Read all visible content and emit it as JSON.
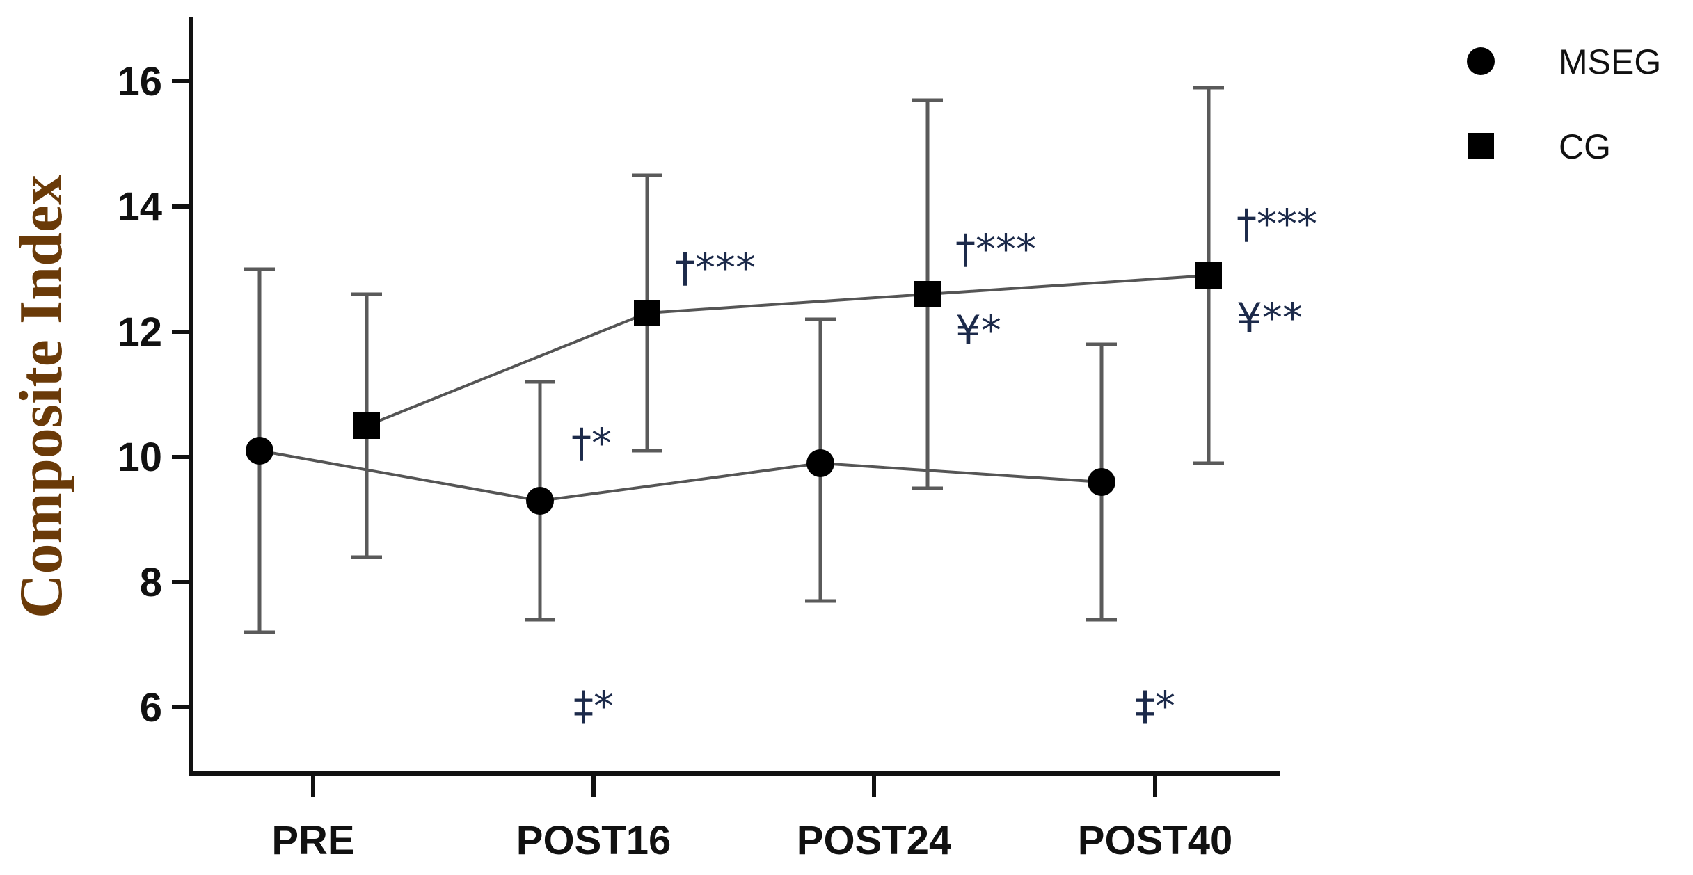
{
  "chart_data": {
    "type": "line",
    "title": "",
    "xlabel": "",
    "ylabel": "Composite Index",
    "categories": [
      "PRE",
      "POST16",
      "POST24",
      "POST40"
    ],
    "ylim": [
      5,
      17
    ],
    "yticks": [
      6,
      8,
      10,
      12,
      14,
      16
    ],
    "grid": false,
    "legend_position": "top-right",
    "series": [
      {
        "name": "MSEG",
        "marker": "circle",
        "values": [
          10.1,
          9.3,
          9.9,
          9.6
        ],
        "error_low": [
          7.2,
          7.4,
          7.7,
          7.4
        ],
        "error_high": [
          13.0,
          11.2,
          12.2,
          11.8
        ]
      },
      {
        "name": "CG",
        "marker": "square",
        "values": [
          10.5,
          12.3,
          12.6,
          12.9
        ],
        "error_low": [
          8.4,
          10.1,
          9.5,
          9.9
        ],
        "error_high": [
          12.6,
          14.5,
          15.7,
          15.9
        ]
      }
    ],
    "annotations": [
      {
        "text": "†*",
        "category": "POST16",
        "series": "MSEG",
        "y": 10.0
      },
      {
        "text": "†***",
        "category": "POST16",
        "series": "CG",
        "y": 12.8
      },
      {
        "text": "†***",
        "category": "POST24",
        "series": "CG",
        "y": 13.1
      },
      {
        "text": "¥*",
        "category": "POST24",
        "series": "CG",
        "y": 11.8
      },
      {
        "text": "†***",
        "category": "POST40",
        "series": "CG",
        "y": 13.5
      },
      {
        "text": "¥**",
        "category": "POST40",
        "series": "CG",
        "y": 12.0
      },
      {
        "text": "‡*",
        "category": "POST16",
        "series": "between",
        "y": 5.8
      },
      {
        "text": "‡*",
        "category": "POST40",
        "series": "between",
        "y": 5.8
      }
    ],
    "colors": {
      "line": "#555555",
      "error_bar": "#5a5a5a",
      "marker": "#000000",
      "axis": "#111111",
      "ylabel": "#6a3a08",
      "annotation": "#1c2a4a"
    }
  }
}
